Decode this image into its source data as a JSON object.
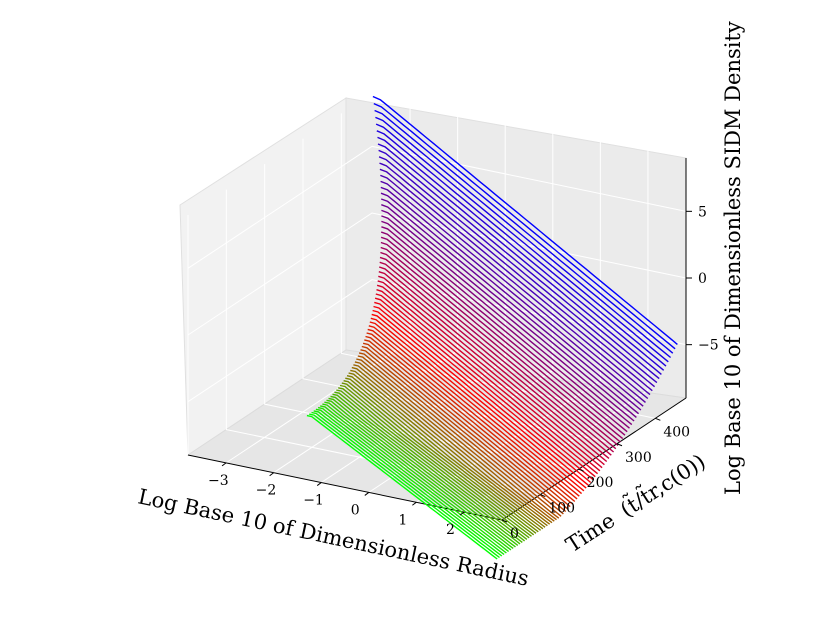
{
  "chart_data": {
    "type": "line",
    "title": "",
    "projection": "3d-surface-lines",
    "xlabel": "Log Base 10 of Dimensionless Radius",
    "ylabel_time": "Time",
    "ylabel_time_expr": "(t̃/t̃r,c(0))",
    "zlabel": "Log Base 10 of Dimensionless SIDM Density",
    "x_ticks": [
      "−3",
      "−2",
      "−1",
      "0",
      "1",
      "2"
    ],
    "y_ticks": [
      "0",
      "100",
      "200",
      "300",
      "400"
    ],
    "z_ticks": [
      "−5",
      "0",
      "5"
    ],
    "xlim": [
      -3.8,
      2.8
    ],
    "ylim": [
      0,
      480
    ],
    "zlim": [
      -9,
      9
    ],
    "grid": true,
    "color_map": {
      "start": "#00ff00",
      "middle": "#ff0000",
      "end": "#0000ff"
    },
    "series_count": 80,
    "time_range": [
      0,
      470
    ],
    "curve_model": {
      "description": "Each series is log density vs log radius at one time; flat core at small radius, power-law falloff outside core; core shrinks and central density rises with time (gravothermal collapse).",
      "x_samples": [
        -1.2,
        -0.8,
        -0.4,
        0.0,
        0.4,
        0.8,
        1.2,
        1.6,
        2.0,
        2.4,
        2.7
      ],
      "initial_log_density": [
        -4.2,
        -4.4,
        -4.7,
        -5.2,
        -5.9,
        -6.6,
        -7.3,
        -8.0,
        -8.6,
        -9.0,
        -9.2
      ],
      "final_log_density_center": 9.0,
      "final_core_log_radius": -3.6
    }
  }
}
